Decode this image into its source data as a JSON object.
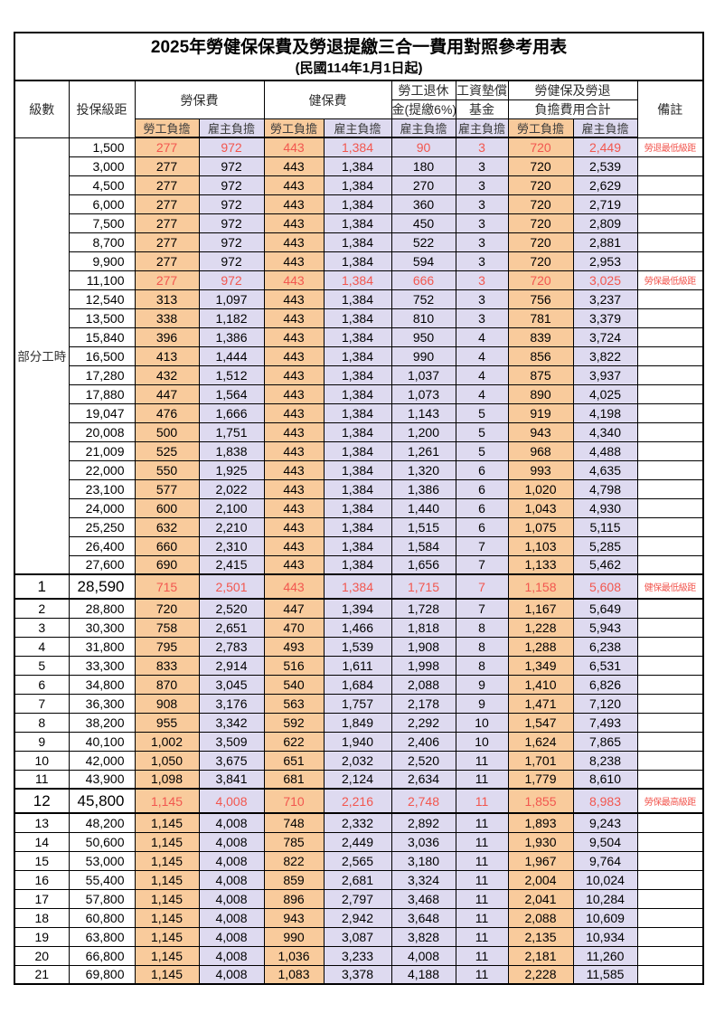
{
  "title": "2025年勞健保保費及勞退提繳三合一費用對照參考用表",
  "subtitle": "(民國114年1月1日起)",
  "columns": {
    "level": "級數",
    "bracket": "投保級距",
    "labor": "勞保費",
    "health": "健保費",
    "pension_top": "勞工退休",
    "pension_bottom": "金(提繳6%)",
    "wage_top": "工資墊償",
    "wage_bottom": "基金",
    "total_top": "勞健保及勞退",
    "total_bottom": "負擔費用合計",
    "remark": "備註",
    "employee_label": "勞工負擔",
    "employer_label": "雇主負擔"
  },
  "part_time_label": "部分工時",
  "colors": {
    "employee_bg": "#F9CB9C",
    "employer_bg": "#DEDAF0",
    "highlight_text": "#F2574F",
    "border": "#000000"
  },
  "rows": [
    {
      "level": "",
      "bracket": "1,500",
      "v": [
        "277",
        "972",
        "443",
        "1,384",
        "90",
        "3",
        "720",
        "2,449"
      ],
      "remark": "勞退最低級距",
      "highlight": true
    },
    {
      "level": "",
      "bracket": "3,000",
      "v": [
        "277",
        "972",
        "443",
        "1,384",
        "180",
        "3",
        "720",
        "2,539"
      ],
      "remark": ""
    },
    {
      "level": "",
      "bracket": "4,500",
      "v": [
        "277",
        "972",
        "443",
        "1,384",
        "270",
        "3",
        "720",
        "2,629"
      ],
      "remark": ""
    },
    {
      "level": "",
      "bracket": "6,000",
      "v": [
        "277",
        "972",
        "443",
        "1,384",
        "360",
        "3",
        "720",
        "2,719"
      ],
      "remark": ""
    },
    {
      "level": "",
      "bracket": "7,500",
      "v": [
        "277",
        "972",
        "443",
        "1,384",
        "450",
        "3",
        "720",
        "2,809"
      ],
      "remark": ""
    },
    {
      "level": "",
      "bracket": "8,700",
      "v": [
        "277",
        "972",
        "443",
        "1,384",
        "522",
        "3",
        "720",
        "2,881"
      ],
      "remark": ""
    },
    {
      "level": "",
      "bracket": "9,900",
      "v": [
        "277",
        "972",
        "443",
        "1,384",
        "594",
        "3",
        "720",
        "2,953"
      ],
      "remark": ""
    },
    {
      "level": "",
      "bracket": "11,100",
      "v": [
        "277",
        "972",
        "443",
        "1,384",
        "666",
        "3",
        "720",
        "3,025"
      ],
      "remark": "勞保最低級距",
      "highlight": true
    },
    {
      "level": "",
      "bracket": "12,540",
      "v": [
        "313",
        "1,097",
        "443",
        "1,384",
        "752",
        "3",
        "756",
        "3,237"
      ],
      "remark": ""
    },
    {
      "level": "",
      "bracket": "13,500",
      "v": [
        "338",
        "1,182",
        "443",
        "1,384",
        "810",
        "3",
        "781",
        "3,379"
      ],
      "remark": ""
    },
    {
      "level": "",
      "bracket": "15,840",
      "v": [
        "396",
        "1,386",
        "443",
        "1,384",
        "950",
        "4",
        "839",
        "3,724"
      ],
      "remark": ""
    },
    {
      "level": "",
      "bracket": "16,500",
      "v": [
        "413",
        "1,444",
        "443",
        "1,384",
        "990",
        "4",
        "856",
        "3,822"
      ],
      "remark": ""
    },
    {
      "level": "",
      "bracket": "17,280",
      "v": [
        "432",
        "1,512",
        "443",
        "1,384",
        "1,037",
        "4",
        "875",
        "3,937"
      ],
      "remark": ""
    },
    {
      "level": "",
      "bracket": "17,880",
      "v": [
        "447",
        "1,564",
        "443",
        "1,384",
        "1,073",
        "4",
        "890",
        "4,025"
      ],
      "remark": ""
    },
    {
      "level": "",
      "bracket": "19,047",
      "v": [
        "476",
        "1,666",
        "443",
        "1,384",
        "1,143",
        "5",
        "919",
        "4,198"
      ],
      "remark": ""
    },
    {
      "level": "",
      "bracket": "20,008",
      "v": [
        "500",
        "1,751",
        "443",
        "1,384",
        "1,200",
        "5",
        "943",
        "4,340"
      ],
      "remark": ""
    },
    {
      "level": "",
      "bracket": "21,009",
      "v": [
        "525",
        "1,838",
        "443",
        "1,384",
        "1,261",
        "5",
        "968",
        "4,488"
      ],
      "remark": ""
    },
    {
      "level": "",
      "bracket": "22,000",
      "v": [
        "550",
        "1,925",
        "443",
        "1,384",
        "1,320",
        "6",
        "993",
        "4,635"
      ],
      "remark": ""
    },
    {
      "level": "",
      "bracket": "23,100",
      "v": [
        "577",
        "2,022",
        "443",
        "1,384",
        "1,386",
        "6",
        "1,020",
        "4,798"
      ],
      "remark": ""
    },
    {
      "level": "",
      "bracket": "24,000",
      "v": [
        "600",
        "2,100",
        "443",
        "1,384",
        "1,440",
        "6",
        "1,043",
        "4,930"
      ],
      "remark": ""
    },
    {
      "level": "",
      "bracket": "25,250",
      "v": [
        "632",
        "2,210",
        "443",
        "1,384",
        "1,515",
        "6",
        "1,075",
        "5,115"
      ],
      "remark": ""
    },
    {
      "level": "",
      "bracket": "26,400",
      "v": [
        "660",
        "2,310",
        "443",
        "1,384",
        "1,584",
        "7",
        "1,103",
        "5,285"
      ],
      "remark": ""
    },
    {
      "level": "",
      "bracket": "27,600",
      "v": [
        "690",
        "2,415",
        "443",
        "1,384",
        "1,656",
        "7",
        "1,133",
        "5,462"
      ],
      "remark": ""
    },
    {
      "level": "1",
      "bracket": "28,590",
      "v": [
        "715",
        "2,501",
        "443",
        "1,384",
        "1,715",
        "7",
        "1,158",
        "5,608"
      ],
      "remark": "健保最低級距",
      "highlight": true,
      "emphasis": true
    },
    {
      "level": "2",
      "bracket": "28,800",
      "v": [
        "720",
        "2,520",
        "447",
        "1,394",
        "1,728",
        "7",
        "1,167",
        "5,649"
      ],
      "remark": ""
    },
    {
      "level": "3",
      "bracket": "30,300",
      "v": [
        "758",
        "2,651",
        "470",
        "1,466",
        "1,818",
        "8",
        "1,228",
        "5,943"
      ],
      "remark": ""
    },
    {
      "level": "4",
      "bracket": "31,800",
      "v": [
        "795",
        "2,783",
        "493",
        "1,539",
        "1,908",
        "8",
        "1,288",
        "6,238"
      ],
      "remark": ""
    },
    {
      "level": "5",
      "bracket": "33,300",
      "v": [
        "833",
        "2,914",
        "516",
        "1,611",
        "1,998",
        "8",
        "1,349",
        "6,531"
      ],
      "remark": ""
    },
    {
      "level": "6",
      "bracket": "34,800",
      "v": [
        "870",
        "3,045",
        "540",
        "1,684",
        "2,088",
        "9",
        "1,410",
        "6,826"
      ],
      "remark": ""
    },
    {
      "level": "7",
      "bracket": "36,300",
      "v": [
        "908",
        "3,176",
        "563",
        "1,757",
        "2,178",
        "9",
        "1,471",
        "7,120"
      ],
      "remark": ""
    },
    {
      "level": "8",
      "bracket": "38,200",
      "v": [
        "955",
        "3,342",
        "592",
        "1,849",
        "2,292",
        "10",
        "1,547",
        "7,493"
      ],
      "remark": ""
    },
    {
      "level": "9",
      "bracket": "40,100",
      "v": [
        "1,002",
        "3,509",
        "622",
        "1,940",
        "2,406",
        "10",
        "1,624",
        "7,865"
      ],
      "remark": ""
    },
    {
      "level": "10",
      "bracket": "42,000",
      "v": [
        "1,050",
        "3,675",
        "651",
        "2,032",
        "2,520",
        "11",
        "1,701",
        "8,238"
      ],
      "remark": ""
    },
    {
      "level": "11",
      "bracket": "43,900",
      "v": [
        "1,098",
        "3,841",
        "681",
        "2,124",
        "2,634",
        "11",
        "1,779",
        "8,610"
      ],
      "remark": ""
    },
    {
      "level": "12",
      "bracket": "45,800",
      "v": [
        "1,145",
        "4,008",
        "710",
        "2,216",
        "2,748",
        "11",
        "1,855",
        "8,983"
      ],
      "remark": "勞保最高級距",
      "highlight": true,
      "emphasis": true
    },
    {
      "level": "13",
      "bracket": "48,200",
      "v": [
        "1,145",
        "4,008",
        "748",
        "2,332",
        "2,892",
        "11",
        "1,893",
        "9,243"
      ],
      "remark": ""
    },
    {
      "level": "14",
      "bracket": "50,600",
      "v": [
        "1,145",
        "4,008",
        "785",
        "2,449",
        "3,036",
        "11",
        "1,930",
        "9,504"
      ],
      "remark": ""
    },
    {
      "level": "15",
      "bracket": "53,000",
      "v": [
        "1,145",
        "4,008",
        "822",
        "2,565",
        "3,180",
        "11",
        "1,967",
        "9,764"
      ],
      "remark": ""
    },
    {
      "level": "16",
      "bracket": "55,400",
      "v": [
        "1,145",
        "4,008",
        "859",
        "2,681",
        "3,324",
        "11",
        "2,004",
        "10,024"
      ],
      "remark": ""
    },
    {
      "level": "17",
      "bracket": "57,800",
      "v": [
        "1,145",
        "4,008",
        "896",
        "2,797",
        "3,468",
        "11",
        "2,041",
        "10,284"
      ],
      "remark": ""
    },
    {
      "level": "18",
      "bracket": "60,800",
      "v": [
        "1,145",
        "4,008",
        "943",
        "2,942",
        "3,648",
        "11",
        "2,088",
        "10,609"
      ],
      "remark": ""
    },
    {
      "level": "19",
      "bracket": "63,800",
      "v": [
        "1,145",
        "4,008",
        "990",
        "3,087",
        "3,828",
        "11",
        "2,135",
        "10,934"
      ],
      "remark": ""
    },
    {
      "level": "20",
      "bracket": "66,800",
      "v": [
        "1,145",
        "4,008",
        "1,036",
        "3,233",
        "4,008",
        "11",
        "2,181",
        "11,260"
      ],
      "remark": ""
    },
    {
      "level": "21",
      "bracket": "69,800",
      "v": [
        "1,145",
        "4,008",
        "1,083",
        "3,378",
        "4,188",
        "11",
        "2,228",
        "11,585"
      ],
      "remark": ""
    }
  ]
}
